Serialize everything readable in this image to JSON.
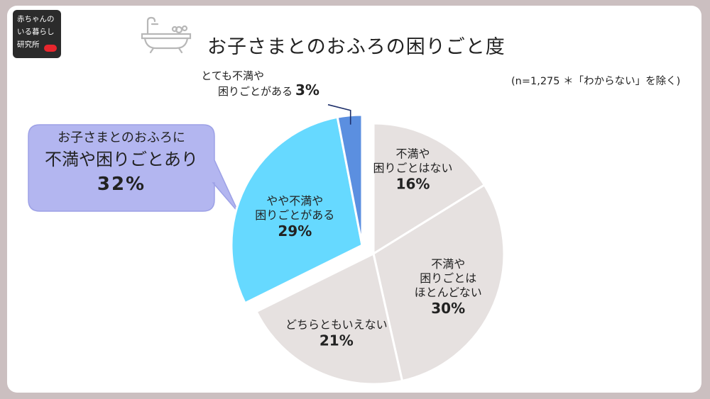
{
  "logo": {
    "line1": "赤ちゃんの",
    "line2": "いる暮らし",
    "line3": "研究所"
  },
  "title": "お子さまとのおふろの困りごと度",
  "note": "(n=1,275 ＊「わからない」を除く)",
  "icons": {
    "bathtub": "bathtub-icon"
  },
  "callout": {
    "line1": "お子さまとのおふろに",
    "line2": "不満や困りごとあり",
    "line3": "32%"
  },
  "colors": {
    "bright_blue": "#5b8fe0",
    "light_blue": "#66d9ff",
    "gray": "#e6e1e0",
    "callout_fill": "#b3b6f0",
    "callout_stroke": "#9da1e6"
  },
  "chart_data": {
    "type": "pie",
    "start": "12 o'clock, clockwise",
    "slices": [
      {
        "label_lines": [
          "不満や",
          "困りごとはない"
        ],
        "pct_label": "16%",
        "value": 16,
        "color": "#e6e1e0",
        "group": "none"
      },
      {
        "label_lines": [
          "不満や",
          "困りごとは",
          "ほとんどない"
        ],
        "pct_label": "30%",
        "value": 30,
        "color": "#e6e1e0",
        "group": "none"
      },
      {
        "label_lines": [
          "どちらともいえない"
        ],
        "pct_label": "21%",
        "value": 21,
        "color": "#e6e1e0",
        "group": "none"
      },
      {
        "label_lines": [
          "やや不満や",
          "困りごとがある"
        ],
        "pct_label": "29%",
        "value": 29,
        "color": "#66d9ff",
        "group": "trouble"
      },
      {
        "label_lines": [
          "とても不満や",
          "困りごとがある"
        ],
        "pct_label": "3%",
        "value": 3,
        "color": "#5b8fe0",
        "group": "trouble"
      }
    ]
  }
}
